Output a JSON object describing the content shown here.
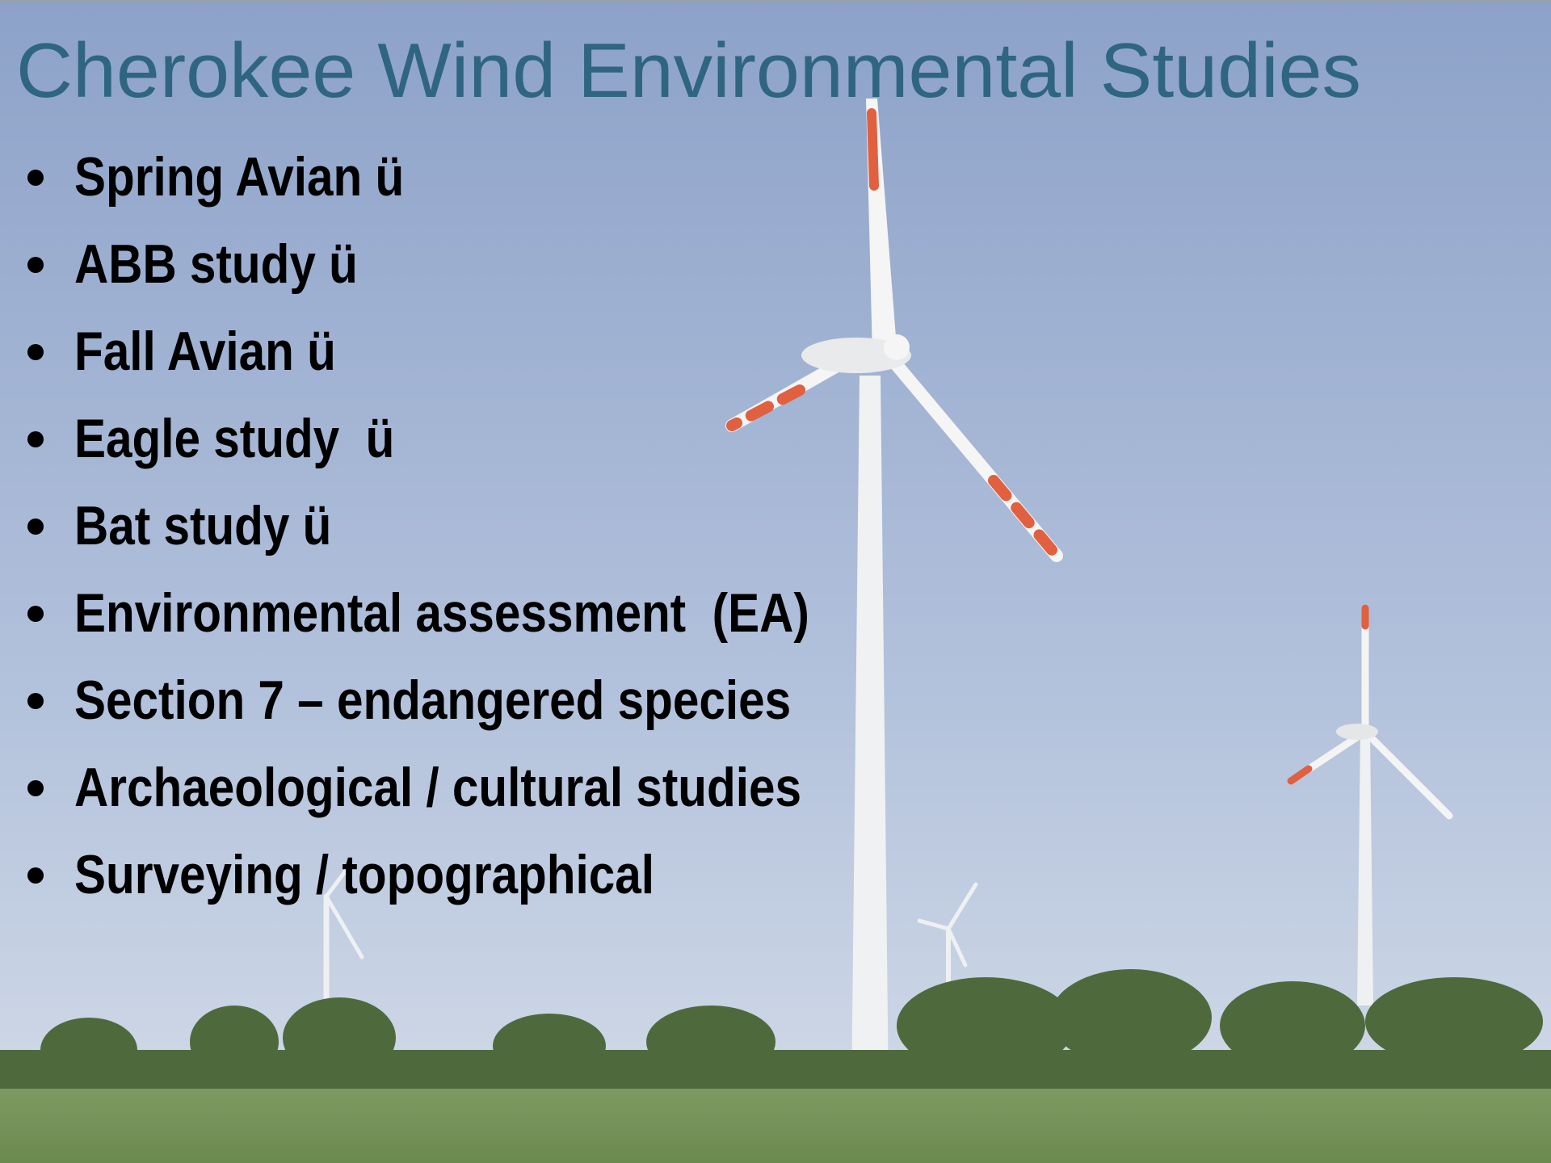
{
  "title": "Cherokee Wind Environmental Studies",
  "bullets": [
    "Spring Avian ü",
    "ABB study ü",
    "Fall Avian ü",
    "Eagle study  ü",
    "Bat study ü",
    "Environmental assessment  (EA)",
    "Section 7 – endangered species",
    "Archaeological / cultural studies",
    "Surveying / topographical"
  ]
}
